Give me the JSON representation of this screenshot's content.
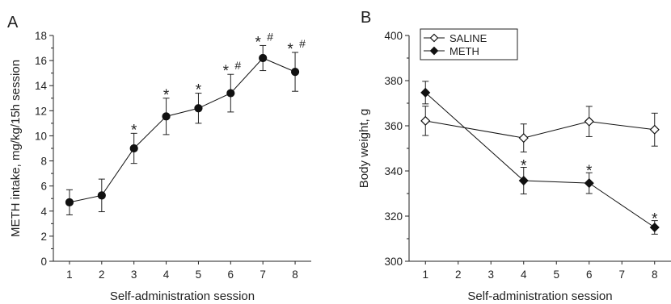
{
  "chart_data": [
    {
      "panel": "A",
      "type": "line",
      "xlabel": "Self-administration session",
      "ylabel": "METH intake, mg/kg/15h session",
      "x": [
        1,
        2,
        3,
        4,
        5,
        6,
        7,
        8
      ],
      "xticks": [
        1,
        2,
        3,
        4,
        5,
        6,
        7,
        8
      ],
      "xlim": [
        0.5,
        8.5
      ],
      "ylim": [
        0,
        18
      ],
      "yticks": [
        0,
        2,
        4,
        6,
        8,
        10,
        12,
        14,
        16,
        18
      ],
      "grid": false,
      "series": [
        {
          "marker": "circle-filled",
          "color": "#111111",
          "values": [
            4.7,
            5.25,
            9.0,
            11.55,
            12.2,
            13.4,
            16.2,
            15.1
          ],
          "errors": [
            1.0,
            1.3,
            1.2,
            1.45,
            1.2,
            1.5,
            1.0,
            1.55
          ]
        }
      ],
      "annotations": [
        {
          "x": 3,
          "text": "*"
        },
        {
          "x": 4,
          "text": "*"
        },
        {
          "x": 5,
          "text": "*"
        },
        {
          "x": 6,
          "text": "*",
          "extra": "#"
        },
        {
          "x": 7,
          "text": "*",
          "extra": "#"
        },
        {
          "x": 8,
          "text": "*",
          "extra": "#"
        }
      ]
    },
    {
      "panel": "B",
      "type": "line",
      "xlabel": "Self-administration session",
      "ylabel": "Body weight, g",
      "xticks": [
        1,
        2,
        3,
        4,
        5,
        6,
        7,
        8
      ],
      "xlim": [
        0.5,
        8.5
      ],
      "ylim": [
        300,
        400
      ],
      "yticks": [
        300,
        320,
        340,
        360,
        380,
        400
      ],
      "grid": false,
      "legend": "top-left",
      "series": [
        {
          "name": "SALINE",
          "marker": "diamond-open",
          "color": "#111111",
          "x": [
            1,
            4,
            6,
            8
          ],
          "values": [
            362.2,
            354.6,
            361.9,
            358.3
          ],
          "errors": [
            6.5,
            6.2,
            6.7,
            7.3
          ]
        },
        {
          "name": "METH",
          "marker": "diamond-filled",
          "color": "#111111",
          "x": [
            1,
            4,
            6,
            8
          ],
          "values": [
            374.7,
            335.7,
            334.6,
            315.0
          ],
          "errors": [
            5.0,
            5.9,
            4.6,
            3.0
          ]
        }
      ],
      "annotations": [
        {
          "x": 4,
          "text": "*"
        },
        {
          "x": 6,
          "text": "*"
        },
        {
          "x": 8,
          "text": "*"
        }
      ]
    }
  ]
}
